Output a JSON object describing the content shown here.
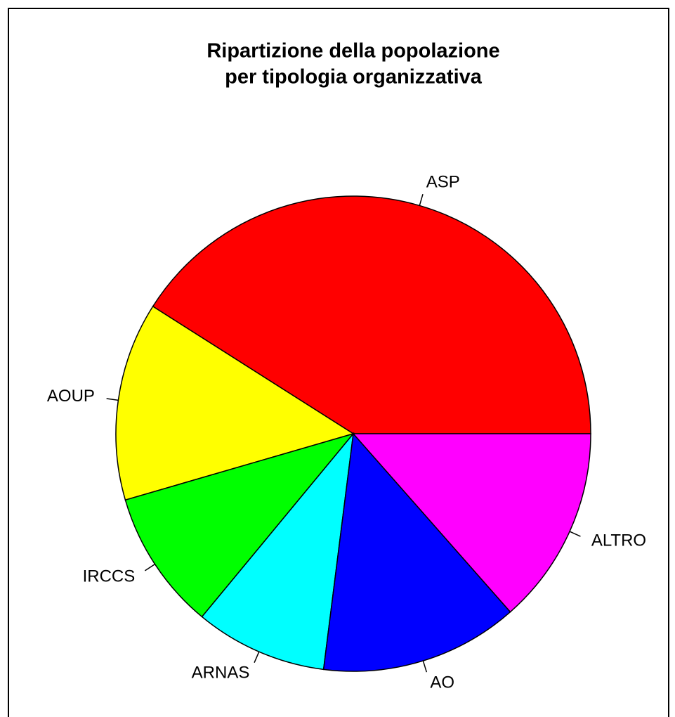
{
  "chart_data": {
    "type": "pie",
    "title": [
      "Ripartizione della popolazione",
      "per tipologia organizzativa"
    ],
    "categories": [
      "ASP",
      "AOUP",
      "IRCCS",
      "ARNAS",
      "AO",
      "ALTRO"
    ],
    "values": [
      41,
      13.5,
      9.5,
      9,
      13.5,
      13.5
    ],
    "colors": [
      "#ff0000",
      "#ffff00",
      "#00ff00",
      "#00ffff",
      "#0000ff",
      "#ff00ff"
    ],
    "start_angle": 0,
    "direction": "counterclockwise"
  }
}
